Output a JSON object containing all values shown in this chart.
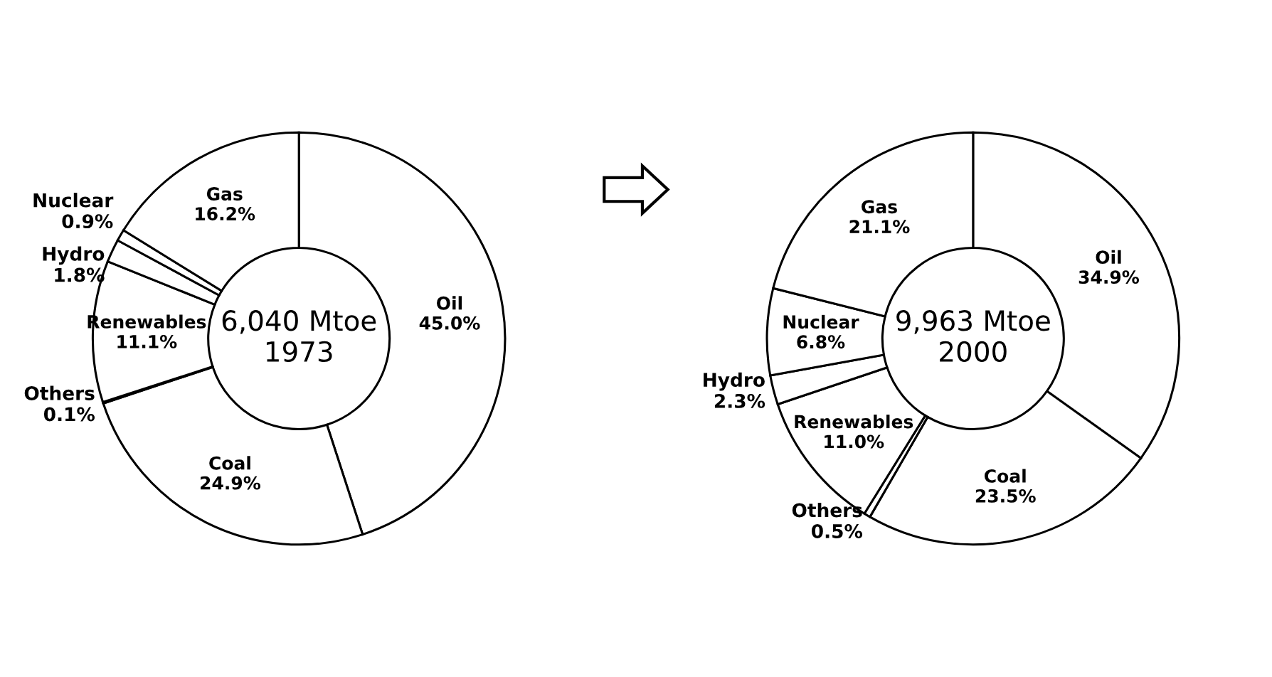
{
  "chart_data": [
    {
      "type": "donut",
      "categories": [
        "Oil",
        "Coal",
        "Others",
        "Renewables",
        "Hydro",
        "Nuclear",
        "Gas"
      ],
      "values": [
        45.0,
        24.9,
        0.1,
        11.1,
        1.8,
        0.9,
        16.2
      ],
      "value_labels": [
        "45.0%",
        "24.9%",
        "0.1%",
        "11.1%",
        "1.8%",
        "0.9%",
        "16.2%"
      ],
      "colors": [
        "#ffffff",
        "#ffffff",
        "#ffffff",
        "#ffffff",
        "#ffffff",
        "#ffffff",
        "#ffffff"
      ],
      "annotations": [
        "6,040 Mtoe\n1973"
      ]
    },
    {
      "type": "donut",
      "categories": [
        "Oil",
        "Coal",
        "Others",
        "Renewables",
        "Hydro",
        "Nuclear",
        "Gas"
      ],
      "values": [
        34.9,
        23.5,
        0.5,
        11.0,
        2.3,
        6.8,
        21.1
      ],
      "value_labels": [
        "34.9%",
        "23.5%",
        "0.5%",
        "11.0%",
        "2.3%",
        "6.8%",
        "21.1%"
      ],
      "colors": [
        "#ffffff",
        "#ffffff",
        "#ffffff",
        "#ffffff",
        "#ffffff",
        "#ffffff",
        "#ffffff"
      ],
      "annotations": [
        "9,963 Mtoe\n2000"
      ]
    }
  ]
}
